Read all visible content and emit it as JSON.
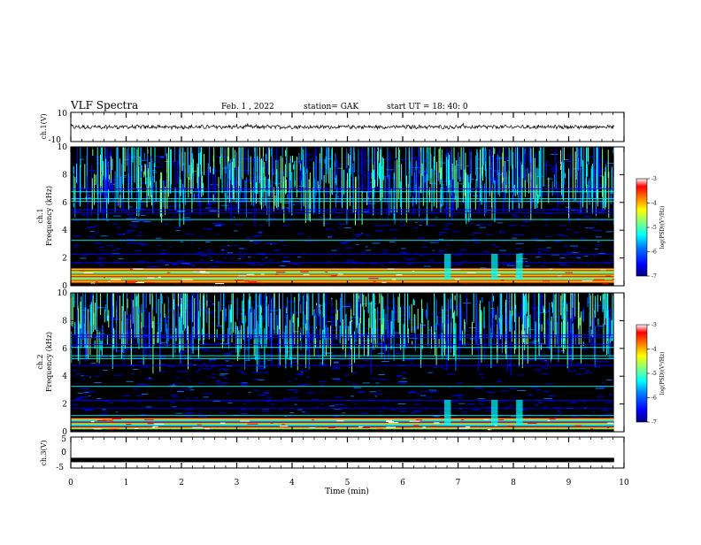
{
  "chart_data": {
    "type": "heatmap",
    "title": "VLF Spectra",
    "date": "Feb. 1 , 2022",
    "station": "station= GAK",
    "start_ut": "start UT =  18: 40: 0",
    "xlabel": "Time (min)",
    "xlim": [
      0,
      10
    ],
    "x_ticks": [
      "0",
      "1",
      "2",
      "3",
      "4",
      "5",
      "6",
      "7",
      "8",
      "9",
      "10"
    ],
    "panels": [
      {
        "id": "ch1-waveform",
        "type": "line",
        "ylabel": "ch.1(V)",
        "ylim": [
          -10,
          10
        ],
        "y_ticks": [
          "10",
          "-10"
        ]
      },
      {
        "id": "ch1-spectrogram",
        "type": "heatmap",
        "ylabel_channel": "ch.1",
        "ylabel": "Frequency (kHz)",
        "ylim": [
          0,
          10
        ],
        "y_ticks": [
          "0",
          "2",
          "4",
          "6",
          "8",
          "10"
        ],
        "colorbar": {
          "label": "log(PSD)(V²/Hz)",
          "range": [
            -7,
            -3
          ],
          "ticks": [
            "-3",
            "-4",
            "-5",
            "-6",
            "-7"
          ]
        }
      },
      {
        "id": "ch2-spectrogram",
        "type": "heatmap",
        "ylabel_channel": "ch.2",
        "ylabel": "Frequency (kHz)",
        "ylim": [
          0,
          10
        ],
        "y_ticks": [
          "0",
          "2",
          "4",
          "6",
          "8",
          "10"
        ],
        "colorbar": {
          "label": "log(PSD)(V²/Hz)",
          "range": [
            -7,
            -3
          ],
          "ticks": [
            "-3",
            "-4",
            "-5",
            "-6",
            "-7"
          ]
        }
      },
      {
        "id": "ch3-waveform",
        "type": "line",
        "ylabel": "ch.3(V)",
        "ylim": [
          -5,
          5
        ],
        "y_ticks": [
          "5",
          "0",
          "-5"
        ],
        "level": -2.4
      }
    ],
    "features": {
      "strong_band_khz": [
        0.2,
        1.0
      ],
      "horizontal_lines_khz": [
        0.5,
        1.0,
        1.2,
        1.7,
        2.3,
        3.3,
        4.8,
        5.3,
        5.5,
        6.1,
        6.3,
        6.8,
        7.0
      ],
      "bursts_min": [
        6.8,
        7.65,
        8.1
      ]
    }
  },
  "colors": {
    "colormap": [
      "#00007f",
      "#0000ff",
      "#0080ff",
      "#00ffff",
      "#80ff80",
      "#ffff00",
      "#ff8000",
      "#ff0000",
      "#ffffff"
    ]
  }
}
